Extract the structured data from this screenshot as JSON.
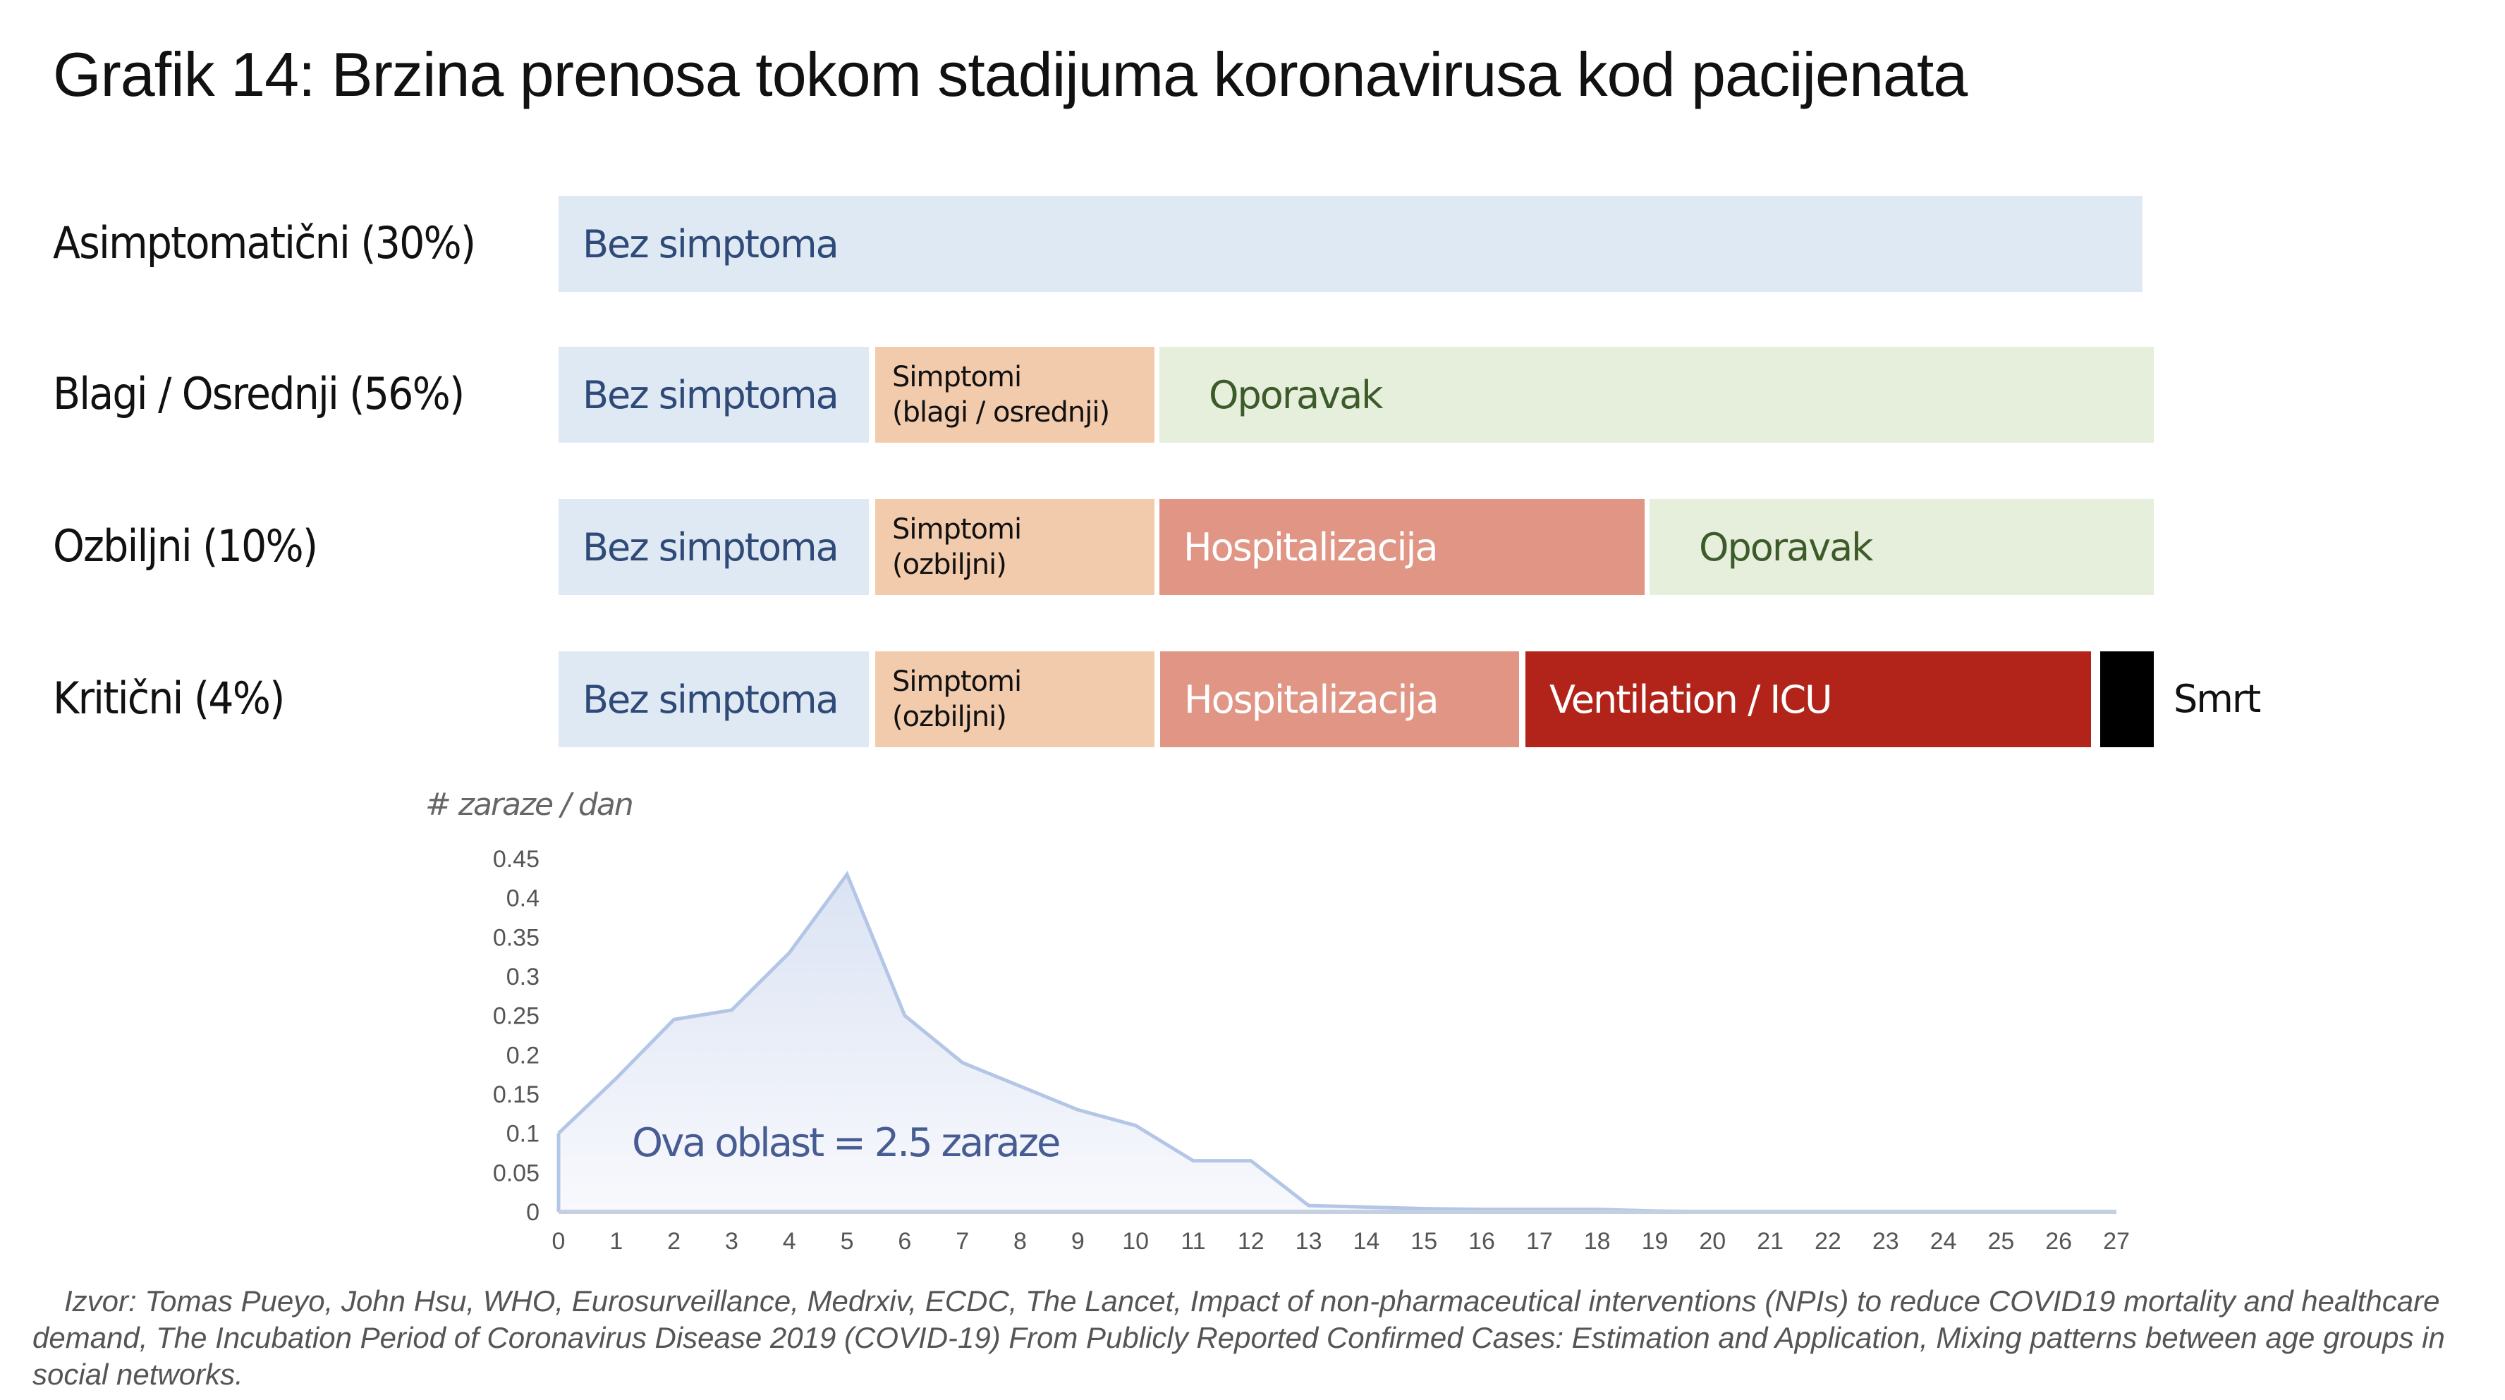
{
  "title": "Grafik 14: Brzina prenosa tokom stadijuma koronavirusa kod pacijenata",
  "colors": {
    "no_symptoms": "#dfe9f4",
    "symptoms": "#f2cbad",
    "recovery": "#e6efdb",
    "hospital": "#e09585",
    "icu": "#b22419",
    "death": "#000000",
    "area_line": "#b4c6e6",
    "area_fill": "#dfe6f4",
    "annotation": "#465c92"
  },
  "rows": [
    {
      "label": "Asimptomatični (30%)",
      "segments": [
        {
          "text": "Bez simptoma",
          "type": "no_symptoms"
        }
      ]
    },
    {
      "label": "Blagi / Osrednji (56%)",
      "segments": [
        {
          "text": "Bez simptoma",
          "type": "no_symptoms"
        },
        {
          "text": "Simptomi\n(blagi / osrednji)",
          "type": "symptoms"
        },
        {
          "text": "Oporavak",
          "type": "recovery"
        }
      ]
    },
    {
      "label": "Ozbiljni (10%)",
      "segments": [
        {
          "text": "Bez simptoma",
          "type": "no_symptoms"
        },
        {
          "text": "Simptomi\n(ozbiljni)",
          "type": "symptoms"
        },
        {
          "text": "Hospitalizacija",
          "type": "hospital"
        },
        {
          "text": "Oporavak",
          "type": "recovery"
        }
      ]
    },
    {
      "label": "Kritični (4%)",
      "segments": [
        {
          "text": "Bez simptoma",
          "type": "no_symptoms"
        },
        {
          "text": "Simptomi\n(ozbiljni)",
          "type": "symptoms"
        },
        {
          "text": "Hospitalizacija",
          "type": "hospital"
        },
        {
          "text": "Ventilation / ICU",
          "type": "icu"
        },
        {
          "text": "",
          "type": "death"
        }
      ],
      "end_label": "Smrt"
    }
  ],
  "chart_data": {
    "type": "area",
    "ylabel": "# zaraze / dan",
    "x": [
      0,
      1,
      2,
      3,
      4,
      5,
      6,
      7,
      8,
      9,
      10,
      11,
      12,
      13,
      14,
      15,
      16,
      17,
      18,
      19,
      20,
      21,
      22,
      23,
      24,
      25,
      26,
      27
    ],
    "values": [
      0.1,
      0.17,
      0.245,
      0.257,
      0.33,
      0.43,
      0.25,
      0.19,
      0.16,
      0.13,
      0.11,
      0.065,
      0.065,
      0.008,
      0.006,
      0.004,
      0.003,
      0.003,
      0.003,
      0.001,
      0,
      0,
      0,
      0,
      0,
      0,
      0,
      0
    ],
    "xlim": [
      0,
      27
    ],
    "ylim": [
      0,
      0.45
    ],
    "yticks": [
      "0",
      "0.05",
      "0.1",
      "0.15",
      "0.2",
      "0.25",
      "0.3",
      "0.35",
      "0.4",
      "0.45"
    ],
    "annotation": "Ova oblast = 2.5 zaraze",
    "grid": false
  },
  "source": "Izvor: Tomas Pueyo, John Hsu, WHO, Eurosurveillance, Medrxiv, ECDC, The Lancet, Impact of non-pharmaceutical interventions (NPIs) to reduce COVID19 mortality and healthcare demand, The Incubation Period of Coronavirus Disease 2019 (COVID-19) From Publicly Reported Confirmed Cases: Estimation and Application, Mixing patterns between age groups in social networks."
}
